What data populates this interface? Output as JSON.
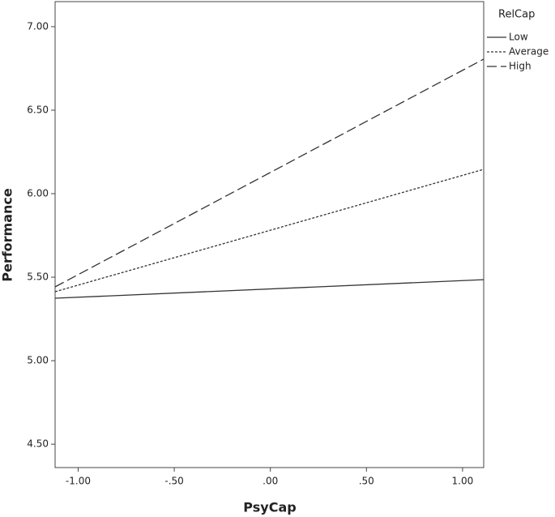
{
  "chart_data": {
    "type": "line",
    "x_label": "PsyCap",
    "y_label": "Performance",
    "legend_title": "RelCap",
    "x": [
      -1.12,
      1.11
    ],
    "series": [
      {
        "name": "Low",
        "color": "#333333",
        "style": "solid",
        "values": [
          5.374,
          5.485
        ]
      },
      {
        "name": "Average",
        "color": "#333333",
        "style": "dotted",
        "values": [
          5.413,
          6.146
        ]
      },
      {
        "name": "High",
        "color": "#333333",
        "style": "dashed",
        "values": [
          5.442,
          6.806
        ]
      }
    ],
    "xlim": [
      -1.12,
      1.11
    ],
    "xticks": [
      {
        "value": -1,
        "label": "-1.00"
      },
      {
        "value": -0.5,
        "label": "-.50"
      },
      {
        "value": 0,
        "label": ".00"
      },
      {
        "value": 0.5,
        "label": ".50"
      },
      {
        "value": 1,
        "label": "1.00"
      }
    ],
    "ylim": [
      4.36,
      7.15
    ],
    "yticks": [
      {
        "value": 4.5,
        "label": "4.50"
      },
      {
        "value": 5,
        "label": "5.00"
      },
      {
        "value": 5.5,
        "label": "5.50"
      },
      {
        "value": 6,
        "label": "6.00"
      },
      {
        "value": 6.5,
        "label": "6.50"
      },
      {
        "value": 7,
        "label": "7.00"
      }
    ],
    "grid": false,
    "legend": "outside-right-top"
  }
}
